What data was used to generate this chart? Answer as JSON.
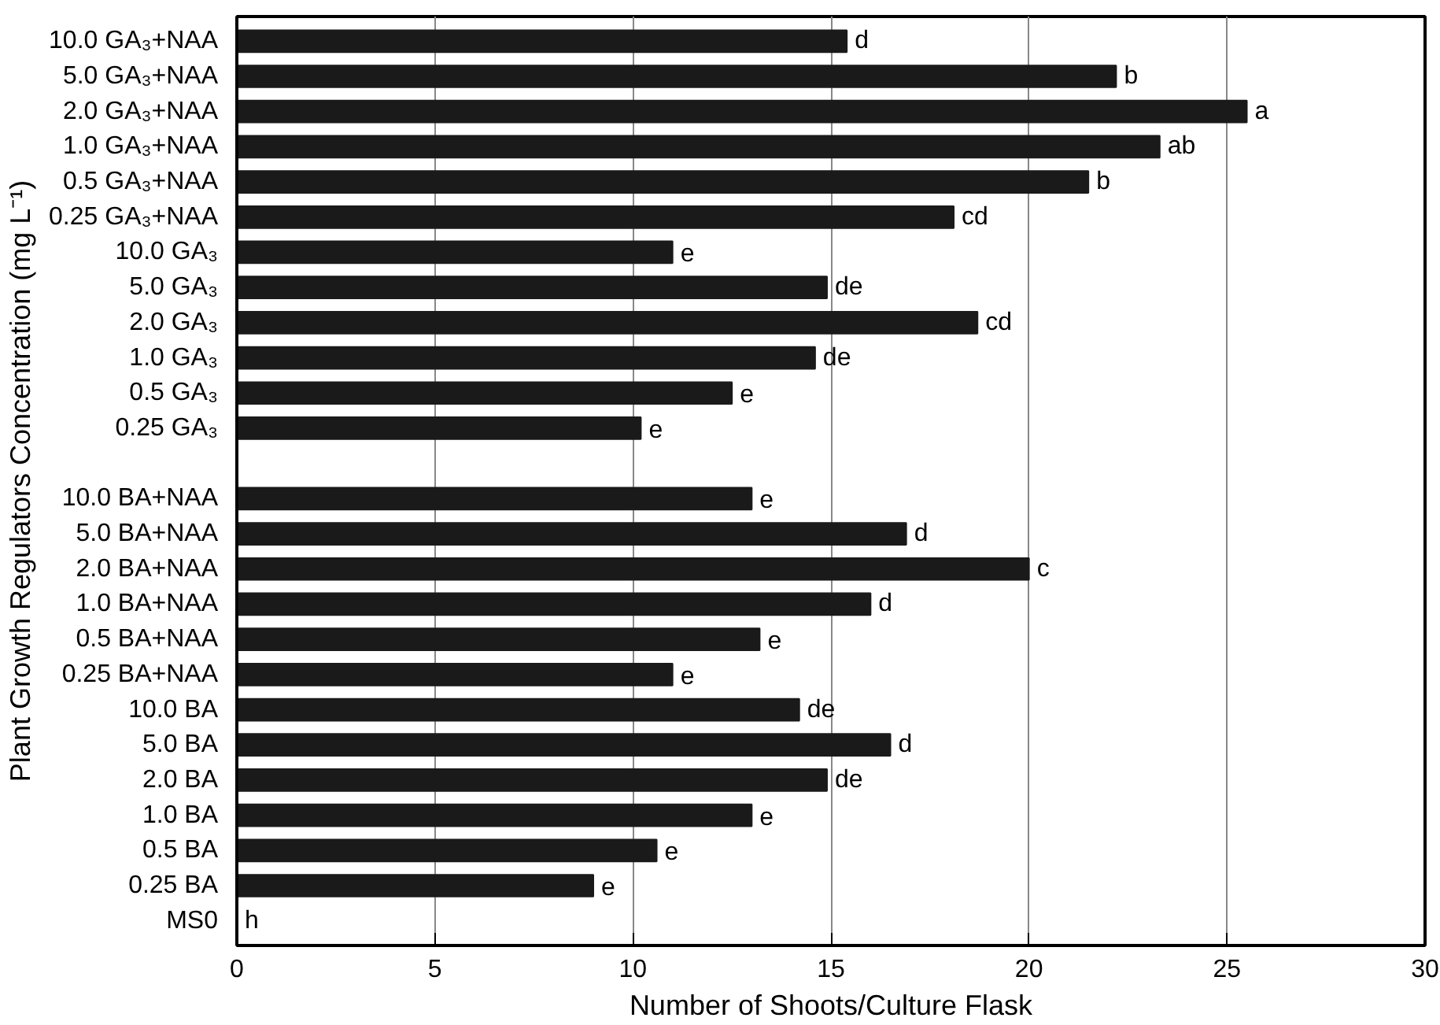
{
  "chart_data": {
    "type": "bar",
    "orientation": "horizontal",
    "xlabel": "Number of Shoots/Culture Flask",
    "ylabel": "Plant Growth Regulators Concentration (mg L⁻¹)",
    "categories": [
      "10.0 GA₃+NAA",
      "5.0 GA₃+NAA",
      "2.0 GA₃+NAA",
      "1.0 GA₃+NAA",
      "0.5 GA₃+NAA",
      "0.25 GA₃+NAA",
      "10.0 GA₃",
      "5.0 GA₃",
      "2.0 GA₃",
      "1.0 GA₃",
      "0.5 GA₃",
      "0.25 GA₃",
      null,
      "10.0 BA+NAA",
      "5.0 BA+NAA",
      "2.0 BA+NAA",
      "1.0 BA+NAA",
      "0.5 BA+NAA",
      "0.25 BA+NAA",
      "10.0 BA",
      "5.0 BA",
      "2.0 BA",
      "1.0 BA",
      "0.5 BA",
      "0.25 BA",
      "MS0"
    ],
    "values": [
      15.4,
      22.2,
      25.5,
      23.3,
      21.5,
      18.1,
      11.0,
      14.9,
      18.7,
      14.6,
      12.5,
      10.2,
      null,
      13.0,
      16.9,
      20.0,
      16.0,
      13.2,
      11.0,
      14.2,
      16.5,
      14.9,
      13.0,
      10.6,
      9.0,
      0
    ],
    "value_labels": [
      "d",
      "b",
      "a",
      "ab",
      "b",
      "cd",
      "e",
      "de",
      "cd",
      "de",
      "e",
      "e",
      null,
      "e",
      "d",
      "c",
      "d",
      "e",
      "e",
      "de",
      "d",
      "de",
      "e",
      "e",
      "e",
      "h"
    ],
    "color": "#1a1a1a",
    "xlim": [
      0,
      30
    ],
    "xticks": [
      0,
      5,
      10,
      15,
      20,
      25,
      30
    ],
    "grid": "x"
  }
}
